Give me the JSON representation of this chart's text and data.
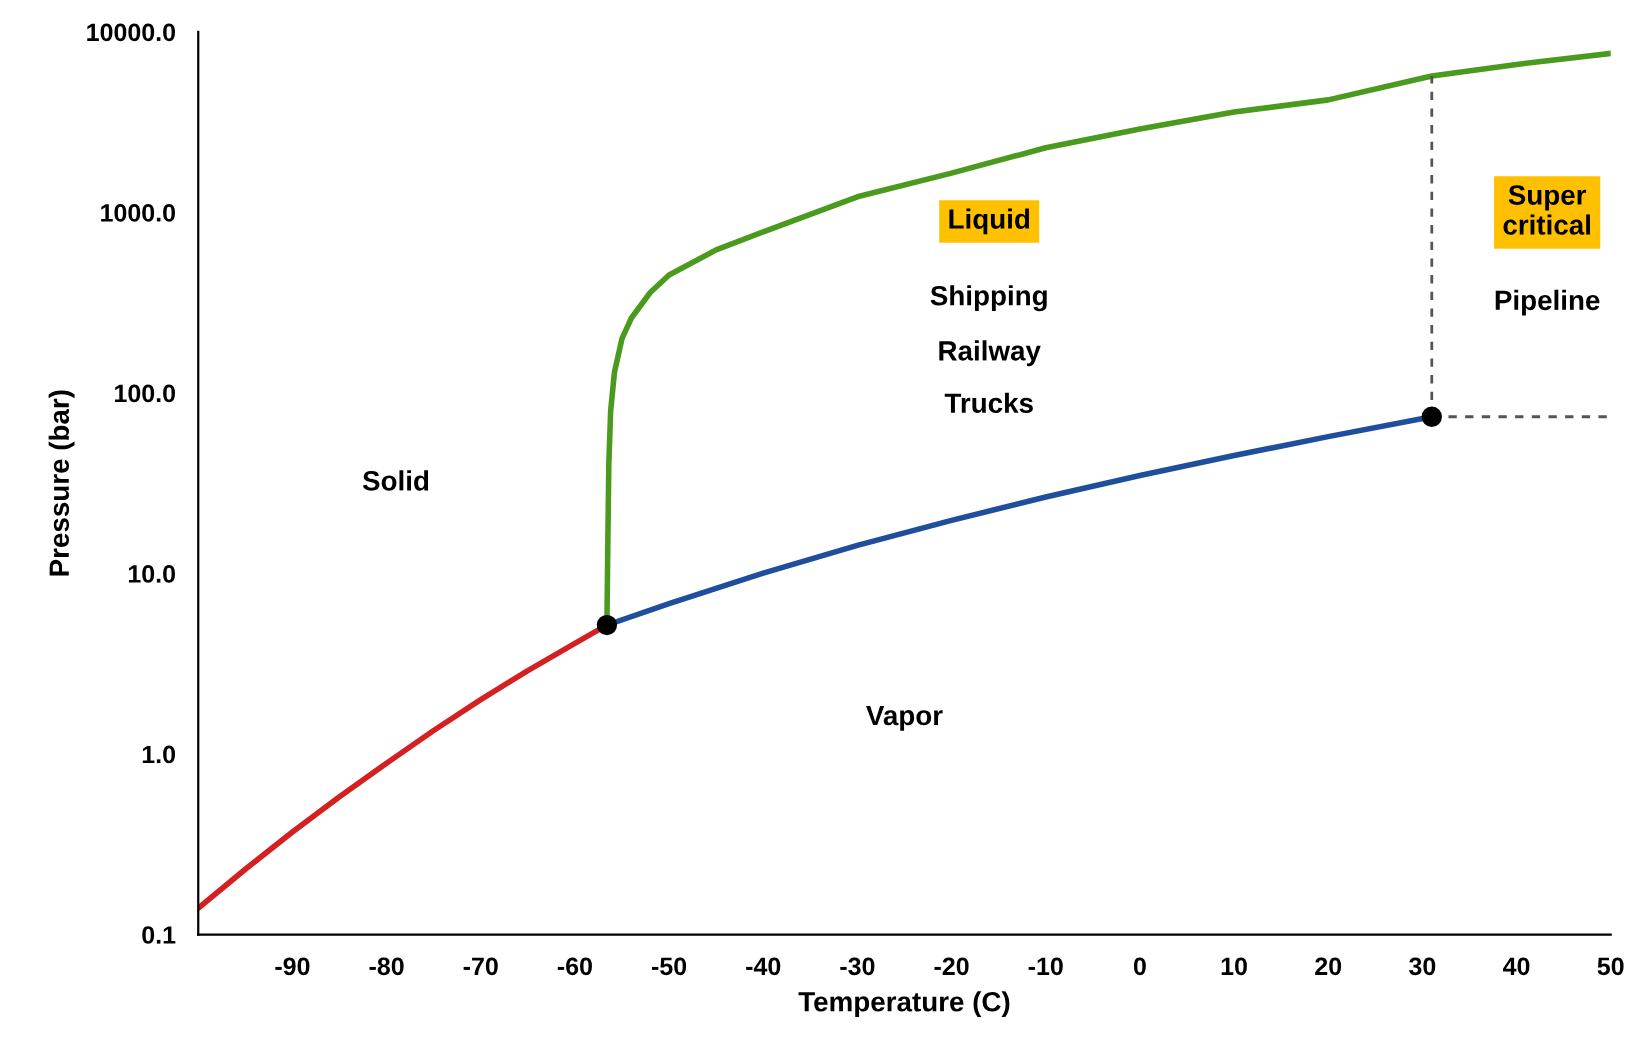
{
  "chart_data": {
    "type": "line",
    "xlabel": "Temperature (C)",
    "ylabel": "Pressure (bar)",
    "log": "y",
    "xlim": [
      -100,
      50
    ],
    "xticks": [
      -90,
      -80,
      -70,
      -60,
      -50,
      -40,
      -30,
      -20,
      -10,
      0,
      10,
      20,
      30,
      40,
      50
    ],
    "ylim": [
      0.1,
      10000
    ],
    "yticks": [
      {
        "value": 0.1,
        "label": "0.1"
      },
      {
        "value": 1,
        "label": "1.0"
      },
      {
        "value": 10,
        "label": "10.0"
      },
      {
        "value": 100,
        "label": "100.0"
      },
      {
        "value": 1000,
        "label": "1000.0"
      },
      {
        "value": 10000,
        "label": "10000.0"
      }
    ],
    "grid": false,
    "series": [
      {
        "color": "#d42020",
        "x": [
          -100,
          -95,
          -90,
          -85,
          -80,
          -75,
          -70,
          -65,
          -60,
          -56.6
        ],
        "values": [
          0.14,
          0.23,
          0.37,
          0.58,
          0.89,
          1.35,
          2.0,
          2.9,
          4.1,
          5.18
        ]
      },
      {
        "color": "#1f4e9c",
        "x": [
          -56.6,
          -50,
          -40,
          -30,
          -20,
          -10,
          0,
          10,
          20,
          31
        ],
        "values": [
          5.18,
          6.8,
          10.05,
          14.3,
          19.7,
          26.5,
          34.9,
          45.0,
          57.3,
          73.8
        ]
      },
      {
        "color": "#4a9a1e",
        "x": [
          -56.6,
          -56.5,
          -56.4,
          -56.2,
          -55.8,
          -55,
          -54,
          -52,
          -50,
          -45,
          -40,
          -30,
          -20,
          -10,
          0,
          10,
          20,
          31,
          40,
          50
        ],
        "values": [
          5.18,
          15,
          40,
          80,
          130,
          200,
          260,
          360,
          450,
          620,
          780,
          1220,
          1650,
          2280,
          2900,
          3600,
          4200,
          5700,
          6600,
          7600
        ]
      },
      {
        "color": "#555555",
        "line_style": "dashed",
        "x": [
          31,
          31
        ],
        "values": [
          73.8,
          5700
        ]
      },
      {
        "color": "#555555",
        "line_style": "dashed",
        "x": [
          31,
          50
        ],
        "values": [
          73.8,
          73.8
        ]
      },
      {
        "type": "scatter",
        "color": "#000000",
        "x": [
          -56.6,
          31
        ],
        "values": [
          5.18,
          73.8
        ]
      }
    ],
    "annotations": [
      "Solid",
      "Liquid",
      "Shipping",
      "Railway",
      "Trucks",
      "Super\ncritical",
      "Pipeline",
      "Vapor"
    ]
  }
}
